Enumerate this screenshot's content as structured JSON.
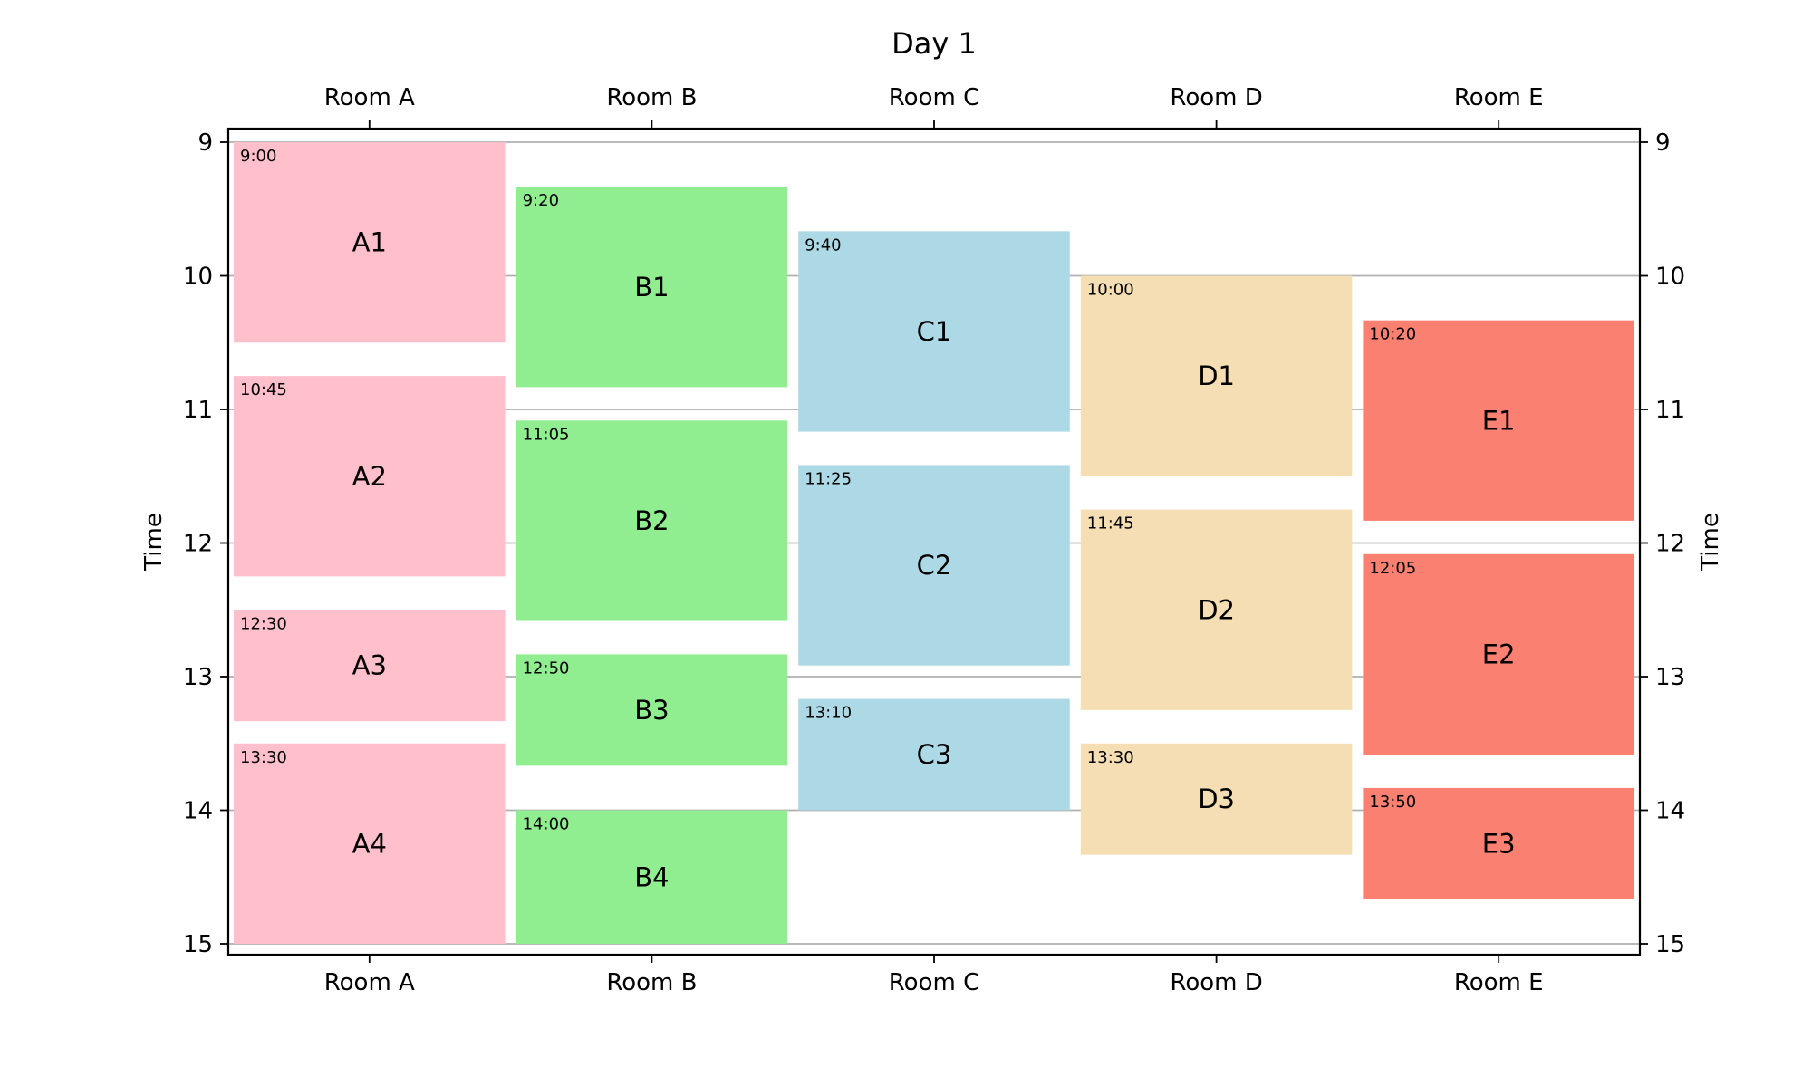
{
  "chart_data": {
    "type": "timetable",
    "title": "Day 1",
    "ylabel": "Time",
    "rooms": [
      "Room A",
      "Room B",
      "Room C",
      "Room D",
      "Room E"
    ],
    "hours": [
      "9",
      "10",
      "11",
      "12",
      "13",
      "14",
      "15"
    ],
    "ylim": [
      9,
      15
    ],
    "grid": "horizontal",
    "room_colors": {
      "Room A": "#ffc0cb",
      "Room B": "#90ee90",
      "Room C": "#add8e6",
      "Room D": "#f5deb3",
      "Room E": "#fa8072"
    },
    "events": [
      {
        "room": "Room A",
        "label": "A1",
        "start_label": "9:00",
        "start": 9.0,
        "end": 10.5
      },
      {
        "room": "Room A",
        "label": "A2",
        "start_label": "10:45",
        "start": 10.75,
        "end": 12.25
      },
      {
        "room": "Room A",
        "label": "A3",
        "start_label": "12:30",
        "start": 12.5,
        "end": 13.3333
      },
      {
        "room": "Room A",
        "label": "A4",
        "start_label": "13:30",
        "start": 13.5,
        "end": 15.0
      },
      {
        "room": "Room B",
        "label": "B1",
        "start_label": "9:20",
        "start": 9.3333,
        "end": 10.8333
      },
      {
        "room": "Room B",
        "label": "B2",
        "start_label": "11:05",
        "start": 11.0833,
        "end": 12.5833
      },
      {
        "room": "Room B",
        "label": "B3",
        "start_label": "12:50",
        "start": 12.8333,
        "end": 13.6667
      },
      {
        "room": "Room B",
        "label": "B4",
        "start_label": "14:00",
        "start": 14.0,
        "end": 15.0
      },
      {
        "room": "Room C",
        "label": "C1",
        "start_label": "9:40",
        "start": 9.6667,
        "end": 11.1667
      },
      {
        "room": "Room C",
        "label": "C2",
        "start_label": "11:25",
        "start": 11.4167,
        "end": 12.9167
      },
      {
        "room": "Room C",
        "label": "C3",
        "start_label": "13:10",
        "start": 13.1667,
        "end": 14.0
      },
      {
        "room": "Room D",
        "label": "D1",
        "start_label": "10:00",
        "start": 10.0,
        "end": 11.5
      },
      {
        "room": "Room D",
        "label": "D2",
        "start_label": "11:45",
        "start": 11.75,
        "end": 13.25
      },
      {
        "room": "Room D",
        "label": "D3",
        "start_label": "13:30",
        "start": 13.5,
        "end": 14.3333
      },
      {
        "room": "Room E",
        "label": "E1",
        "start_label": "10:20",
        "start": 10.3333,
        "end": 11.8333
      },
      {
        "room": "Room E",
        "label": "E2",
        "start_label": "12:05",
        "start": 12.0833,
        "end": 13.5833
      },
      {
        "room": "Room E",
        "label": "E3",
        "start_label": "13:50",
        "start": 13.8333,
        "end": 14.6667
      }
    ]
  }
}
